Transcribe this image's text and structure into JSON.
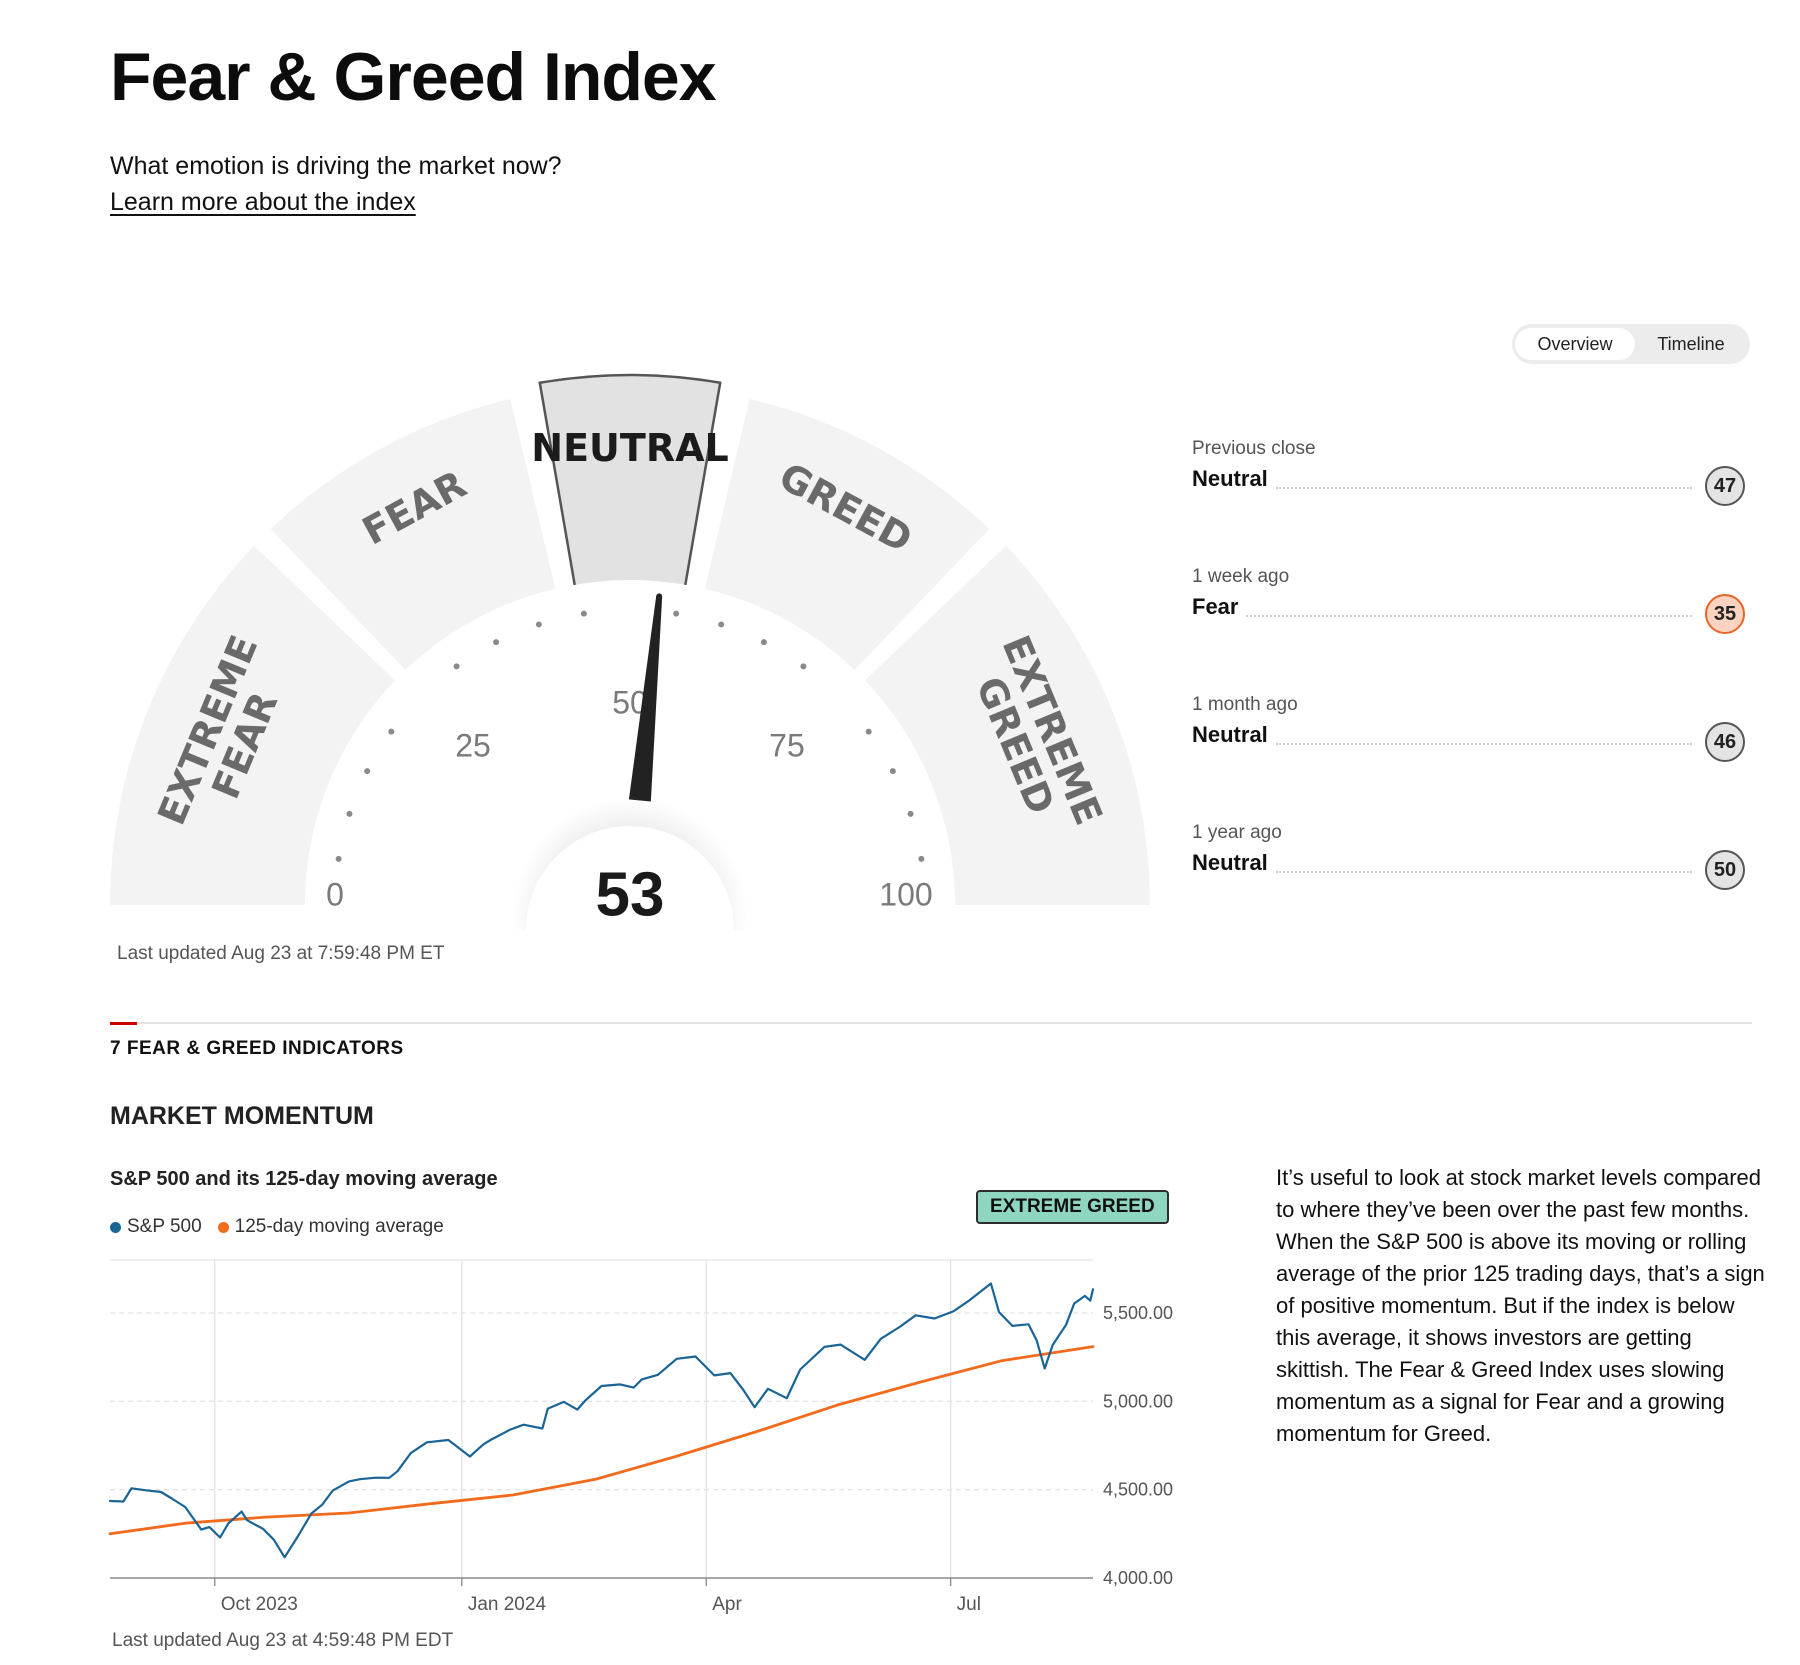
{
  "header": {
    "title": "Fear & Greed Index",
    "subtitle": "What emotion is driving the market now?",
    "learn_link": "Learn more about the index"
  },
  "view_toggle": {
    "overview": "Overview",
    "timeline": "Timeline",
    "active": "Overview"
  },
  "gauge": {
    "value": 53,
    "current_rating": "NEUTRAL",
    "zones": [
      "EXTREME FEAR",
      "FEAR",
      "NEUTRAL",
      "GREED",
      "EXTREME GREED"
    ],
    "tick_labels": [
      "0",
      "25",
      "50",
      "75",
      "100"
    ],
    "last_updated": "Last updated Aug 23 at 7:59:48 PM ET"
  },
  "history": [
    {
      "when": "Previous close",
      "rating": "Neutral",
      "value": "47",
      "color": "#e4e4e4"
    },
    {
      "when": "1 week ago",
      "rating": "Fear",
      "value": "35",
      "color": "#fbd3c0"
    },
    {
      "when": "1 month ago",
      "rating": "Neutral",
      "value": "46",
      "color": "#e4e4e4"
    },
    {
      "when": "1 year ago",
      "rating": "Neutral",
      "value": "50",
      "color": "#e4e4e4"
    }
  ],
  "indicators": {
    "heading": "7 FEAR & GREED INDICATORS",
    "market_momentum": {
      "heading": "MARKET MOMENTUM",
      "chart_title": "S&P 500 and its 125-day moving average",
      "status_badge": "EXTREME GREED",
      "description": "It’s useful to look at stock market levels compared to where they’ve been over the past few months. When the S&P 500 is above its moving or rolling average of the prior 125 trading days, that’s a sign of positive momentum. But if the index is below this average, it shows investors are getting skittish. The Fear & Greed Index uses slowing momentum as a signal for Fear and a growing momentum for Greed.",
      "last_updated": "Last updated Aug 23 at 4:59:48 PM EDT"
    }
  },
  "colors": {
    "sp500": "#1a6496",
    "moving_average": "#f26a1b",
    "badge": "#8fd6c0",
    "accent": "#cc0000"
  },
  "chart_data": {
    "type": "line",
    "title": "S&P 500 and its 125-day moving average",
    "x_axis": {
      "type": "date",
      "start": "2023-08-23",
      "end": "2024-08-23",
      "ticks": [
        {
          "date": "2023-10-01",
          "label": "Oct 2023"
        },
        {
          "date": "2024-01-01",
          "label": "Jan 2024"
        },
        {
          "date": "2024-04-01",
          "label": "Apr"
        },
        {
          "date": "2024-07-01",
          "label": "Jul"
        }
      ]
    },
    "ylim": [
      4000,
      5800
    ],
    "yticks": [
      "4,000.00",
      "4,500.00",
      "5,000.00",
      "5,500.00"
    ],
    "grid": true,
    "legend": "top-left",
    "series": [
      {
        "name": "S&P 500",
        "color": "#1a6496",
        "points": [
          [
            "2023-08-23",
            4436
          ],
          [
            "2023-08-28",
            4433
          ],
          [
            "2023-08-31",
            4508
          ],
          [
            "2023-09-05",
            4497
          ],
          [
            "2023-09-11",
            4487
          ],
          [
            "2023-09-15",
            4450
          ],
          [
            "2023-09-20",
            4402
          ],
          [
            "2023-09-26",
            4274
          ],
          [
            "2023-09-29",
            4288
          ],
          [
            "2023-10-03",
            4229
          ],
          [
            "2023-10-06",
            4308
          ],
          [
            "2023-10-11",
            4376
          ],
          [
            "2023-10-13",
            4327
          ],
          [
            "2023-10-19",
            4278
          ],
          [
            "2023-10-23",
            4217
          ],
          [
            "2023-10-27",
            4117
          ],
          [
            "2023-11-01",
            4237
          ],
          [
            "2023-11-06",
            4365
          ],
          [
            "2023-11-10",
            4415
          ],
          [
            "2023-11-14",
            4496
          ],
          [
            "2023-11-20",
            4547
          ],
          [
            "2023-11-24",
            4559
          ],
          [
            "2023-11-30",
            4568
          ],
          [
            "2023-12-05",
            4567
          ],
          [
            "2023-12-08",
            4604
          ],
          [
            "2023-12-13",
            4707
          ],
          [
            "2023-12-19",
            4768
          ],
          [
            "2023-12-27",
            4781
          ],
          [
            "2024-01-04",
            4688
          ],
          [
            "2024-01-09",
            4756
          ],
          [
            "2024-01-12",
            4784
          ],
          [
            "2024-01-19",
            4840
          ],
          [
            "2024-01-24",
            4868
          ],
          [
            "2024-01-31",
            4846
          ],
          [
            "2024-02-02",
            4959
          ],
          [
            "2024-02-08",
            4997
          ],
          [
            "2024-02-13",
            4953
          ],
          [
            "2024-02-16",
            5005
          ],
          [
            "2024-02-22",
            5087
          ],
          [
            "2024-02-29",
            5096
          ],
          [
            "2024-03-05",
            5078
          ],
          [
            "2024-03-08",
            5124
          ],
          [
            "2024-03-14",
            5150
          ],
          [
            "2024-03-21",
            5241
          ],
          [
            "2024-03-28",
            5254
          ],
          [
            "2024-04-04",
            5147
          ],
          [
            "2024-04-10",
            5160
          ],
          [
            "2024-04-15",
            5061
          ],
          [
            "2024-04-19",
            4967
          ],
          [
            "2024-04-24",
            5071
          ],
          [
            "2024-05-01",
            5018
          ],
          [
            "2024-05-06",
            5180
          ],
          [
            "2024-05-15",
            5308
          ],
          [
            "2024-05-21",
            5321
          ],
          [
            "2024-05-30",
            5235
          ],
          [
            "2024-06-05",
            5354
          ],
          [
            "2024-06-12",
            5421
          ],
          [
            "2024-06-18",
            5487
          ],
          [
            "2024-06-25",
            5469
          ],
          [
            "2024-07-02",
            5509
          ],
          [
            "2024-07-08",
            5572
          ],
          [
            "2024-07-16",
            5667
          ],
          [
            "2024-07-19",
            5505
          ],
          [
            "2024-07-24",
            5427
          ],
          [
            "2024-07-30",
            5436
          ],
          [
            "2024-08-02",
            5346
          ],
          [
            "2024-08-05",
            5186
          ],
          [
            "2024-08-08",
            5319
          ],
          [
            "2024-08-13",
            5434
          ],
          [
            "2024-08-16",
            5554
          ],
          [
            "2024-08-20",
            5597
          ],
          [
            "2024-08-22",
            5570
          ],
          [
            "2024-08-23",
            5634
          ]
        ]
      },
      {
        "name": "125-day moving average",
        "color": "#f26a1b",
        "points": [
          [
            "2023-08-23",
            4250
          ],
          [
            "2023-09-20",
            4310
          ],
          [
            "2023-10-20",
            4345
          ],
          [
            "2023-11-20",
            4368
          ],
          [
            "2023-12-20",
            4420
          ],
          [
            "2024-01-20",
            4470
          ],
          [
            "2024-02-20",
            4560
          ],
          [
            "2024-03-20",
            4685
          ],
          [
            "2024-04-20",
            4830
          ],
          [
            "2024-05-20",
            4980
          ],
          [
            "2024-06-20",
            5110
          ],
          [
            "2024-07-20",
            5230
          ],
          [
            "2024-08-23",
            5310
          ]
        ]
      }
    ]
  }
}
